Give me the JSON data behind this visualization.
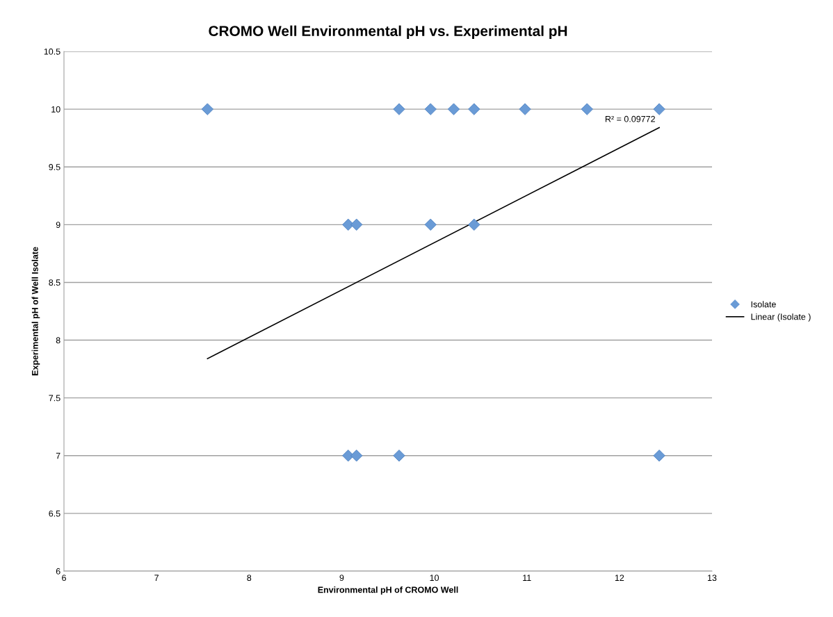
{
  "chart_data": {
    "type": "scatter",
    "title": "CROMO Well Environmental pH vs. Experimental pH",
    "xlabel": "Environmental pH of CROMO Well",
    "ylabel": "Experimental pH of Well Isolate",
    "series": [
      {
        "name": "Isolate",
        "color": "#6a9bd6",
        "marker": "diamond",
        "x": [
          7.55,
          9.62,
          9.96,
          10.21,
          10.43,
          10.98,
          11.65,
          12.43,
          9.07,
          9.16,
          9.96,
          10.43,
          9.07,
          9.16,
          9.62,
          12.43
        ],
        "values": [
          10,
          10,
          10,
          10,
          10,
          10,
          10,
          10,
          9,
          9,
          9,
          9,
          7,
          7,
          7,
          7
        ]
      },
      {
        "name": "Linear (Isolate )",
        "type": "line",
        "color": "#000000",
        "marker": "none",
        "line_style": "solid",
        "x": [
          7.55,
          12.43
        ],
        "values": [
          7.84,
          9.84
        ]
      }
    ],
    "annotations": [
      "R² = 0.09772"
    ],
    "xlim": [
      6,
      13
    ],
    "xticks": [
      6,
      7,
      8,
      9,
      10,
      11,
      12,
      13
    ],
    "ylim": [
      6,
      10.5
    ],
    "yticks": [
      6,
      6.5,
      7,
      7.5,
      8,
      8.5,
      9,
      9.5,
      10,
      10.5
    ],
    "grid": "y",
    "legend": "right"
  }
}
